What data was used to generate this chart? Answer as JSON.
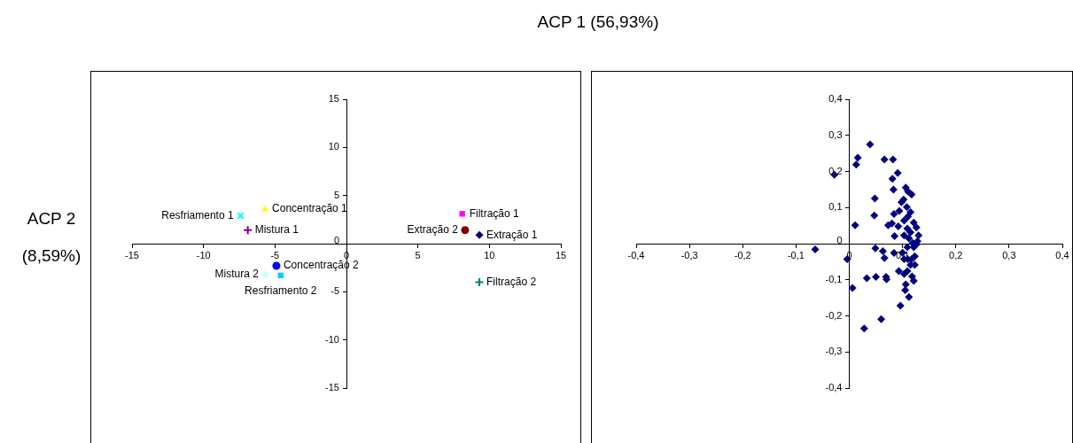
{
  "chart_data": [
    {
      "type": "scatter",
      "xlabel": "ACP 1  (56,93%)",
      "ylabel": "ACP 2 (8,59%)",
      "xlim": [
        -15,
        15
      ],
      "ylim": [
        -15,
        15
      ],
      "xticks": [
        -15,
        -10,
        -5,
        0,
        5,
        10,
        15
      ],
      "yticks": [
        -15,
        -10,
        -5,
        0,
        5,
        10,
        15
      ],
      "grid": false,
      "legend": false,
      "series": [
        {
          "name": "Extração 1",
          "color": "#000080",
          "marker": "diamond",
          "x": [
            9.3
          ],
          "values": [
            0.9
          ]
        },
        {
          "name": "Filtração 1",
          "color": "#ff00ff",
          "marker": "square",
          "x": [
            8.1
          ],
          "values": [
            3.1
          ]
        },
        {
          "name": "Concentração 1",
          "color": "#ffff00",
          "marker": "triangle",
          "x": [
            -5.7
          ],
          "values": [
            3.6
          ]
        },
        {
          "name": "Resfriamento 1",
          "color": "#00ffff",
          "marker": "x",
          "x": [
            -7.4
          ],
          "values": [
            2.9
          ]
        },
        {
          "name": "Mistura 1",
          "color": "#800080",
          "marker": "cross",
          "x": [
            -6.9
          ],
          "values": [
            1.4
          ]
        },
        {
          "name": "Extração 2",
          "color": "#800000",
          "marker": "circle",
          "x": [
            8.3
          ],
          "values": [
            1.4
          ]
        },
        {
          "name": "Filtração 2",
          "color": "#008080",
          "marker": "cross",
          "x": [
            9.3
          ],
          "values": [
            -4.0
          ]
        },
        {
          "name": "Concentração 2",
          "color": "#0000ff",
          "marker": "circle",
          "x": [
            -4.9
          ],
          "values": [
            -2.3
          ]
        },
        {
          "name": "Resfriamento 2",
          "color": "#00ccff",
          "marker": "square",
          "x": [
            -4.6
          ],
          "values": [
            -3.3
          ]
        },
        {
          "name": "Mistura 2",
          "color": "#ccffff",
          "marker": "diamond",
          "x": [
            -5.65
          ],
          "values": [
            -3.2
          ]
        }
      ]
    },
    {
      "type": "scatter",
      "xlim": [
        -0.4,
        0.4
      ],
      "ylim": [
        -0.4,
        0.4
      ],
      "grid": false,
      "legend": false,
      "xticks": [
        {
          "value": -0.4,
          "label": "-0,4"
        },
        {
          "value": -0.3,
          "label": "-0,3"
        },
        {
          "value": -0.2,
          "label": "-0,2"
        },
        {
          "value": -0.1,
          "label": "-0,1"
        },
        0,
        {
          "value": 0.1,
          "label": "0,1"
        },
        {
          "value": 0.2,
          "label": "0,2"
        },
        {
          "value": 0.3,
          "label": "0,3"
        },
        {
          "value": 0.4,
          "label": "0,4"
        }
      ],
      "yticks": [
        {
          "value": -0.4,
          "label": "-0,4"
        },
        {
          "value": -0.3,
          "label": "-0,3"
        },
        {
          "value": -0.2,
          "label": "-0,2"
        },
        {
          "value": -0.1,
          "label": "-0,1"
        },
        0,
        {
          "value": 0.1,
          "label": "0,1"
        },
        {
          "value": 0.2,
          "label": "0,2"
        },
        {
          "value": 0.3,
          "label": "0,3"
        },
        {
          "value": 0.4,
          "label": "0,4"
        }
      ],
      "series": [
        {
          "color": "#000080",
          "marker": "diamond",
          "x": [
            -0.064,
            -0.028,
            -0.004,
            0.006,
            0.011,
            0.013,
            0.016,
            0.033,
            0.039,
            0.048,
            0.047,
            0.049,
            0.05,
            0.06,
            0.028,
            0.063,
            0.066,
            0.066,
            0.082,
            0.081,
            0.091,
            0.083,
            0.069,
            0.07,
            0.073,
            0.08,
            0.084,
            0.085,
            0.084,
            0.094,
            0.092,
            0.096,
            0.093,
            0.098,
            0.102,
            0.106,
            0.11,
            0.117,
            0.108,
            0.115,
            0.11,
            0.103,
            0.109,
            0.121,
            0.126,
            0.13,
            0.128,
            0.115,
            0.103,
            0.119,
            0.109,
            0.1,
            0.103,
            0.123,
            0.115,
            0.123,
            0.109,
            0.118,
            0.121,
            0.106,
            0.105,
            0.112,
            0.11,
            0.121,
            0.126,
            0.103,
            0.117,
            0.112
          ],
          "values": [
            -0.016,
            0.191,
            -0.043,
            -0.123,
            0.051,
            0.219,
            0.238,
            -0.096,
            0.275,
            0.125,
            0.078,
            -0.013,
            -0.092,
            -0.209,
            -0.235,
            -0.021,
            -0.04,
            0.233,
            0.233,
            0.18,
            0.196,
            0.15,
            -0.092,
            -0.099,
            0.051,
            0.056,
            0.082,
            0.021,
            -0.026,
            0.091,
            0.048,
            -0.172,
            -0.076,
            0.115,
            0.122,
            0.155,
            0.145,
            0.136,
            0.101,
            0.087,
            0.075,
            0.064,
            0.042,
            0.058,
            0.045,
            0.023,
            0.007,
            0.031,
            0.023,
            0.002,
            -0.01,
            -0.025,
            -0.043,
            -0.035,
            -0.059,
            -0.059,
            -0.076,
            -0.091,
            -0.103,
            -0.113,
            -0.129,
            -0.148,
            -0.043,
            -0.01,
            -0.002,
            -0.084,
            -0.043,
            0.015
          ]
        }
      ]
    }
  ]
}
